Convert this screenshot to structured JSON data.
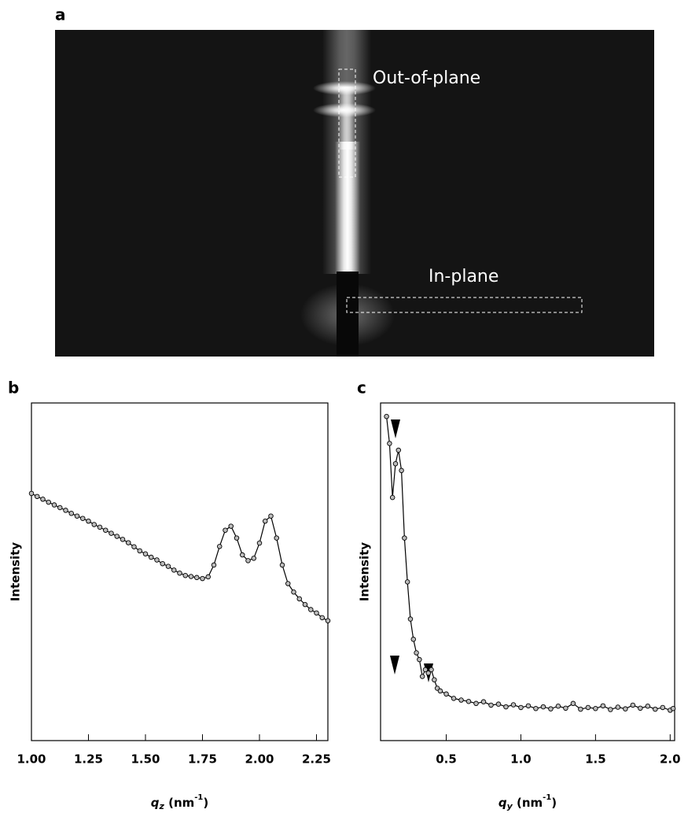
{
  "image": {
    "label": "a",
    "annotations": [
      "Out-of-plane",
      "In-plane"
    ]
  },
  "chart_data": [
    {
      "type": "line",
      "label": "b",
      "y_label": "Intensity",
      "x_label": [
        "q",
        "z",
        " (nm",
        "-1",
        ")"
      ],
      "xlim": [
        1.0,
        2.3
      ],
      "ylim": [
        0,
        100
      ],
      "xticks": [
        {
          "value": 1.0,
          "label": "1.00"
        },
        {
          "value": 1.25,
          "label": "1.25"
        },
        {
          "value": 1.5,
          "label": "1.50"
        },
        {
          "value": 1.75,
          "label": "1.75"
        },
        {
          "value": 2.0,
          "label": "2.00"
        },
        {
          "value": 2.25,
          "label": "2.25"
        }
      ],
      "series": [
        {
          "color": "#000000",
          "x": [
            1.0,
            1.025,
            1.05,
            1.075,
            1.1,
            1.125,
            1.15,
            1.175,
            1.2,
            1.225,
            1.25,
            1.275,
            1.3,
            1.325,
            1.35,
            1.375,
            1.4,
            1.425,
            1.45,
            1.475,
            1.5,
            1.525,
            1.55,
            1.575,
            1.6,
            1.625,
            1.65,
            1.675,
            1.7,
            1.725,
            1.75,
            1.775,
            1.8,
            1.825,
            1.85,
            1.875,
            1.9,
            1.925,
            1.95,
            1.975,
            2.0,
            2.025,
            2.05,
            2.075,
            2.1,
            2.125,
            2.15,
            2.175,
            2.2,
            2.225,
            2.25,
            2.275,
            2.3
          ],
          "values": [
            73.2,
            72.3,
            71.5,
            70.6,
            69.8,
            69.0,
            68.2,
            67.3,
            66.5,
            65.8,
            65.0,
            64.0,
            63.2,
            62.3,
            61.4,
            60.5,
            59.6,
            58.6,
            57.4,
            56.2,
            55.3,
            54.3,
            53.5,
            52.4,
            51.6,
            50.5,
            49.6,
            48.9,
            48.6,
            48.3,
            48.0,
            48.5,
            52.0,
            57.5,
            62.3,
            63.5,
            60.0,
            55.0,
            53.3,
            54.0,
            58.5,
            65.0,
            66.5,
            60.0,
            52.0,
            46.5,
            44.0,
            42.0,
            40.3,
            38.8,
            37.8,
            36.4,
            35.5
          ]
        }
      ]
    },
    {
      "type": "line",
      "label": "c",
      "y_label": "Intensity",
      "x_label": [
        "q",
        "y",
        " (nm",
        "-1",
        ")"
      ],
      "xlim": [
        0.06,
        2.03
      ],
      "ylim": [
        0,
        100
      ],
      "xticks": [
        0.5,
        {
          "value": 1.0,
          "label": "1.0"
        },
        1.5,
        {
          "value": 2.0,
          "label": "2.0"
        }
      ],
      "series": [
        {
          "color": "#000000",
          "x": [
            0.1,
            0.12,
            0.14,
            0.16,
            0.18,
            0.2,
            0.22,
            0.24,
            0.26,
            0.28,
            0.3,
            0.32,
            0.34,
            0.36,
            0.38,
            0.4,
            0.42,
            0.44,
            0.46,
            0.5,
            0.55,
            0.6,
            0.65,
            0.7,
            0.75,
            0.8,
            0.85,
            0.9,
            0.95,
            1.0,
            1.05,
            1.1,
            1.15,
            1.2,
            1.25,
            1.3,
            1.35,
            1.4,
            1.45,
            1.5,
            1.55,
            1.6,
            1.65,
            1.7,
            1.75,
            1.8,
            1.85,
            1.9,
            1.95,
            2.0,
            2.02
          ],
          "values": [
            96,
            88,
            72,
            82,
            86,
            80,
            60,
            47,
            36,
            30,
            26,
            24,
            19,
            21,
            20,
            21,
            18,
            15.5,
            14.7,
            13.8,
            12.5,
            12.0,
            11.6,
            11.0,
            11.5,
            10.5,
            10.8,
            10.0,
            10.6,
            9.8,
            10.3,
            9.5,
            10.0,
            9.4,
            10.2,
            9.6,
            11.0,
            9.3,
            9.8,
            9.5,
            10.3,
            9.2,
            9.9,
            9.4,
            10.5,
            9.6,
            10.2,
            9.3,
            9.8,
            9.0,
            9.5
          ]
        }
      ]
    }
  ]
}
